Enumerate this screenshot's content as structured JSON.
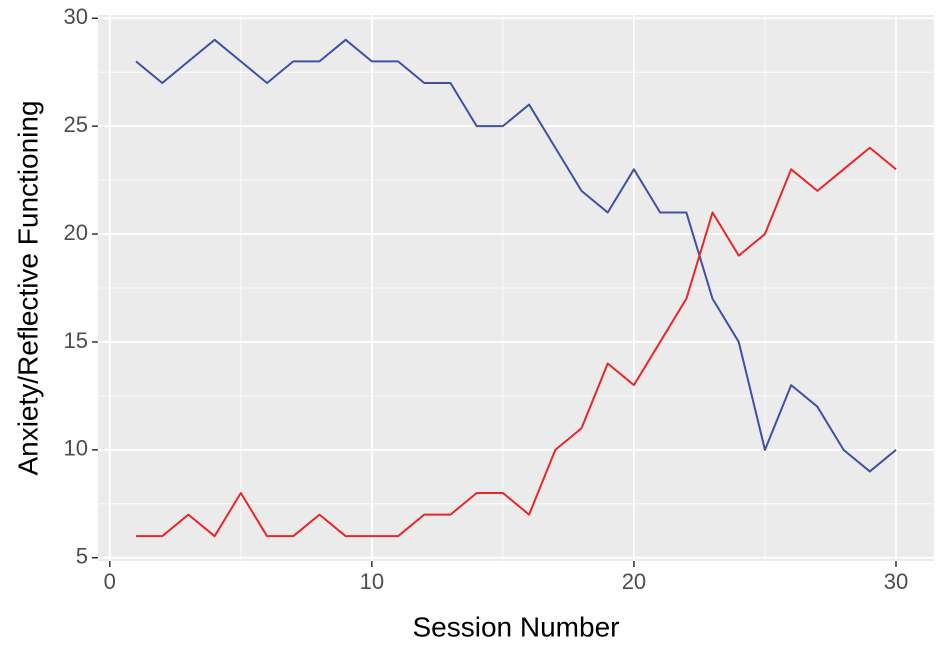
{
  "chart_data": {
    "type": "line",
    "x_label": "Session Number",
    "y_label": "Anxiety/Reflective Functioning",
    "x": [
      1,
      2,
      3,
      4,
      5,
      6,
      7,
      8,
      9,
      10,
      11,
      12,
      13,
      14,
      15,
      16,
      17,
      18,
      19,
      20,
      21,
      22,
      23,
      24,
      25,
      26,
      27,
      28,
      29,
      30
    ],
    "series": [
      {
        "color": "#3f51a5",
        "values": [
          28,
          27,
          28,
          29,
          28,
          27,
          28,
          28,
          29,
          28,
          28,
          27,
          27,
          25,
          25,
          26,
          24,
          22,
          21,
          23,
          21,
          21,
          17,
          15,
          10,
          13,
          12,
          10,
          9,
          10
        ]
      },
      {
        "color": "#e8272a",
        "values": [
          6,
          6,
          7,
          6,
          8,
          6,
          6,
          7,
          6,
          6,
          6,
          7,
          7,
          8,
          8,
          7,
          10,
          11,
          14,
          13,
          15,
          17,
          21,
          19,
          20,
          23,
          22,
          23,
          24,
          23
        ]
      }
    ],
    "xlim": [
      -0.45,
      31.45
    ],
    "xticks": [
      0,
      10,
      20,
      30
    ],
    "ylim": [
      4.85,
      30.15
    ],
    "yticks": [
      5,
      10,
      15,
      20,
      25,
      30
    ],
    "grid": true
  }
}
